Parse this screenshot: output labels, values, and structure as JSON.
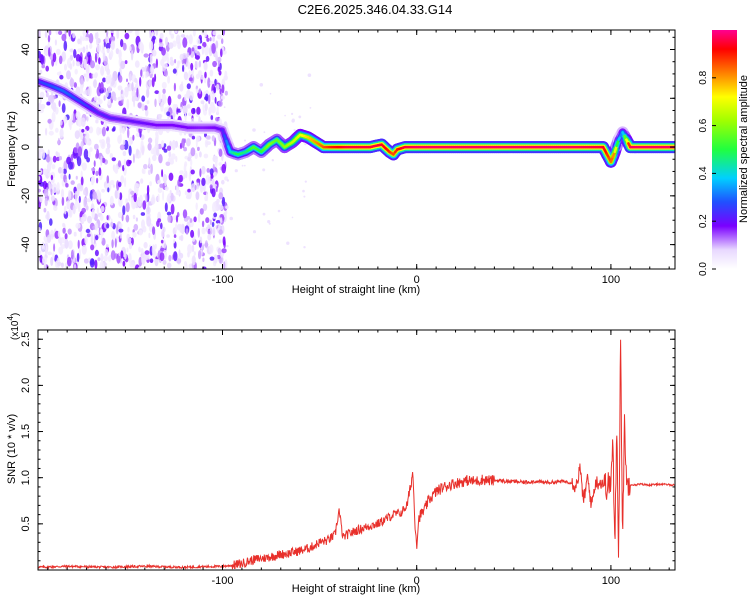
{
  "title": "C2E6.2025.346.04.33.G14",
  "colors": {
    "background": "#ffffff",
    "snr_line": "#e8302b",
    "spectrogram_track": "#cc2222",
    "axis": "#000000"
  },
  "chart_data": [
    {
      "type": "heatmap",
      "xlabel": "Height of straight line (km)",
      "ylabel": "Frequency (Hz)",
      "xlim": [
        -195,
        133
      ],
      "ylim": [
        -50,
        48
      ],
      "x_ticks": [
        -100,
        0,
        100
      ],
      "x_tick_labels": [
        "-100",
        "0",
        "100"
      ],
      "y_ticks": [
        -40,
        -20,
        0,
        20,
        40
      ],
      "y_tick_labels": [
        "-40",
        "-20",
        "0",
        "20",
        "40"
      ],
      "colorbar": {
        "label": "Normalized spectral amplitude",
        "range": [
          0,
          1
        ],
        "ticks": [
          0.0,
          0.2,
          0.4,
          0.6,
          0.8
        ],
        "tick_labels": [
          "0.0",
          "0.2",
          "0.4",
          "0.6",
          "0.8"
        ]
      },
      "noise_region_x": [
        -195,
        -98
      ],
      "ridge": {
        "x": [
          -195,
          -188,
          -182,
          -176,
          -170,
          -164,
          -158,
          -150,
          -142,
          -134,
          -126,
          -118,
          -110,
          -104,
          -100,
          -96,
          -92,
          -88,
          -84,
          -80,
          -76,
          -72,
          -68,
          -64,
          -60,
          -56,
          -52,
          -48,
          -44,
          -40,
          -36,
          -30,
          -24,
          -18,
          -14,
          -12,
          -10,
          -6,
          0,
          20,
          40,
          60,
          80,
          96,
          98,
          100,
          102,
          104,
          106,
          110,
          120,
          133
        ],
        "frequency_hz": [
          27,
          25,
          23,
          20,
          17,
          14,
          12,
          11,
          10,
          9,
          9,
          8,
          8,
          8,
          7,
          -2,
          -3,
          -2,
          0,
          -2,
          1,
          3,
          0,
          2,
          5,
          4,
          2,
          0,
          0,
          0,
          0,
          0,
          0,
          1,
          -2,
          -3,
          -1,
          0,
          0,
          0,
          0,
          0,
          0,
          0,
          -3,
          -6,
          -2,
          3,
          6,
          0,
          0,
          0
        ],
        "amplitude": [
          0.25,
          0.28,
          0.3,
          0.28,
          0.25,
          0.22,
          0.22,
          0.2,
          0.2,
          0.18,
          0.18,
          0.18,
          0.17,
          0.18,
          0.2,
          0.4,
          0.5,
          0.45,
          0.55,
          0.5,
          0.6,
          0.55,
          0.6,
          0.65,
          0.7,
          0.75,
          0.8,
          0.85,
          0.9,
          0.92,
          0.95,
          0.95,
          0.95,
          0.95,
          0.9,
          0.85,
          0.9,
          0.95,
          0.97,
          0.97,
          0.97,
          0.97,
          0.97,
          0.95,
          0.9,
          0.85,
          0.8,
          0.4,
          0.3,
          0.97,
          0.97,
          0.97
        ]
      }
    },
    {
      "type": "line",
      "xlabel": "Height of straight line (km)",
      "ylabel": "SNR (10 * v/v)",
      "y_multiplier_label": "(x10",
      "y_multiplier_exp": "4",
      "xlim": [
        -195,
        133
      ],
      "ylim": [
        0,
        2.6
      ],
      "x_ticks": [
        -100,
        0,
        100
      ],
      "x_tick_labels": [
        "-100",
        "0",
        "100"
      ],
      "y_ticks": [
        0.5,
        1.0,
        1.5,
        2.0,
        2.5
      ],
      "y_tick_labels": [
        "0.5",
        "1.0",
        "1.5",
        "2.0",
        "2.5"
      ],
      "series": [
        {
          "x": [
            -195,
            -180,
            -160,
            -140,
            -120,
            -100,
            -95,
            -90,
            -86,
            -82,
            -78,
            -74,
            -70,
            -66,
            -62,
            -58,
            -54,
            -50,
            -46,
            -42,
            -40,
            -38,
            -36,
            -32,
            -28,
            -24,
            -20,
            -16,
            -12,
            -8,
            -5,
            -3,
            -2,
            -1,
            0,
            1,
            2,
            4,
            6,
            8,
            10,
            14,
            18,
            22,
            26,
            30,
            34,
            38,
            42,
            46,
            50,
            55,
            60,
            65,
            70,
            75,
            80,
            82,
            84,
            86,
            88,
            90,
            92,
            96,
            98,
            100,
            101,
            102,
            103,
            104,
            105,
            106,
            107,
            108,
            109,
            110,
            112,
            115,
            120,
            125,
            133
          ],
          "y": [
            0.03,
            0.04,
            0.03,
            0.04,
            0.03,
            0.04,
            0.05,
            0.07,
            0.1,
            0.12,
            0.13,
            0.15,
            0.17,
            0.18,
            0.2,
            0.22,
            0.25,
            0.3,
            0.32,
            0.38,
            0.65,
            0.35,
            0.38,
            0.42,
            0.45,
            0.48,
            0.5,
            0.55,
            0.6,
            0.62,
            0.7,
            0.92,
            1.07,
            0.55,
            0.27,
            0.55,
            0.6,
            0.65,
            0.75,
            0.8,
            0.85,
            0.9,
            0.93,
            0.95,
            0.97,
            0.96,
            0.98,
            0.97,
            0.97,
            0.96,
            0.96,
            0.95,
            0.96,
            0.95,
            0.95,
            0.96,
            0.95,
            0.9,
            1.1,
            0.75,
            1.0,
            0.7,
            0.95,
            0.95,
            0.9,
            0.95,
            1.4,
            0.2,
            1.6,
            0.15,
            2.6,
            0.2,
            1.7,
            0.9,
            0.95,
            0.93,
            0.92,
            0.93,
            0.92,
            0.93,
            0.92
          ]
        }
      ]
    }
  ]
}
